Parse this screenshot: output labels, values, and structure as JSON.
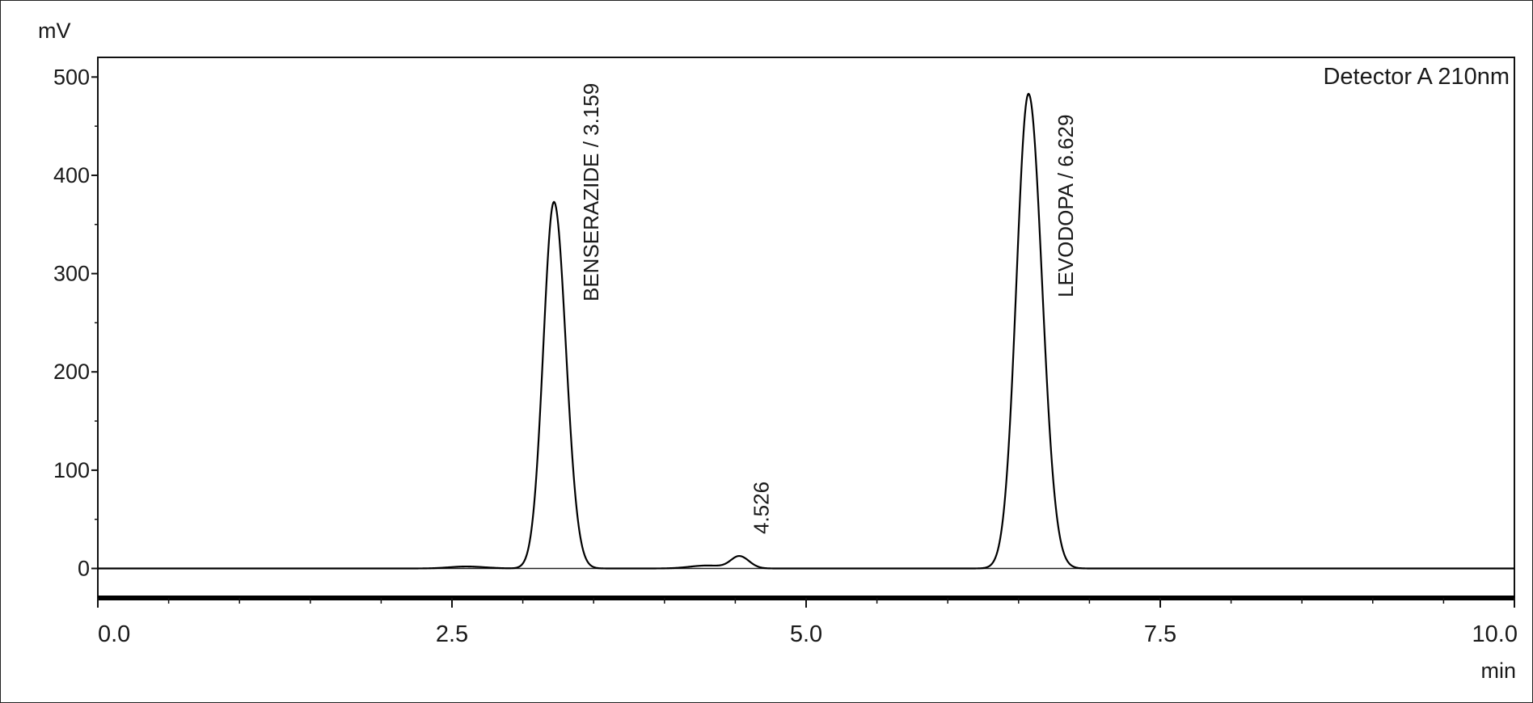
{
  "chart_data": {
    "type": "line",
    "title": "",
    "xlabel": "min",
    "ylabel": "mV",
    "xlim": [
      0.0,
      10.0
    ],
    "ylim": [
      -30,
      520
    ],
    "x_ticks": [
      0.0,
      2.5,
      5.0,
      7.5,
      10.0
    ],
    "x_tick_labels": [
      "0.0",
      "2.5",
      "5.0",
      "7.5",
      "10.0"
    ],
    "y_ticks": [
      0,
      100,
      200,
      300,
      400,
      500
    ],
    "y_tick_labels": [
      "0",
      "100",
      "200",
      "300",
      "400",
      "500"
    ],
    "legend": "top-right",
    "grid": false,
    "series": [
      {
        "name": "Detector A 210nm",
        "color": "#000000",
        "peaks": [
          {
            "label": "BENSERAZIDE / 3.159",
            "retention_time": 3.159,
            "apex_x": 3.22,
            "height": 373,
            "sigma": 0.075
          },
          {
            "label": "4.526",
            "retention_time": 4.526,
            "apex_x": 4.53,
            "height": 12,
            "sigma": 0.06
          },
          {
            "label": "LEVODOPA / 6.629",
            "retention_time": 6.629,
            "apex_x": 6.57,
            "height": 483,
            "sigma": 0.085
          }
        ],
        "baseline_bumps": [
          {
            "x": 2.6,
            "height": 2,
            "sigma": 0.12
          },
          {
            "x": 4.3,
            "height": 3,
            "sigma": 0.12
          }
        ]
      }
    ]
  }
}
